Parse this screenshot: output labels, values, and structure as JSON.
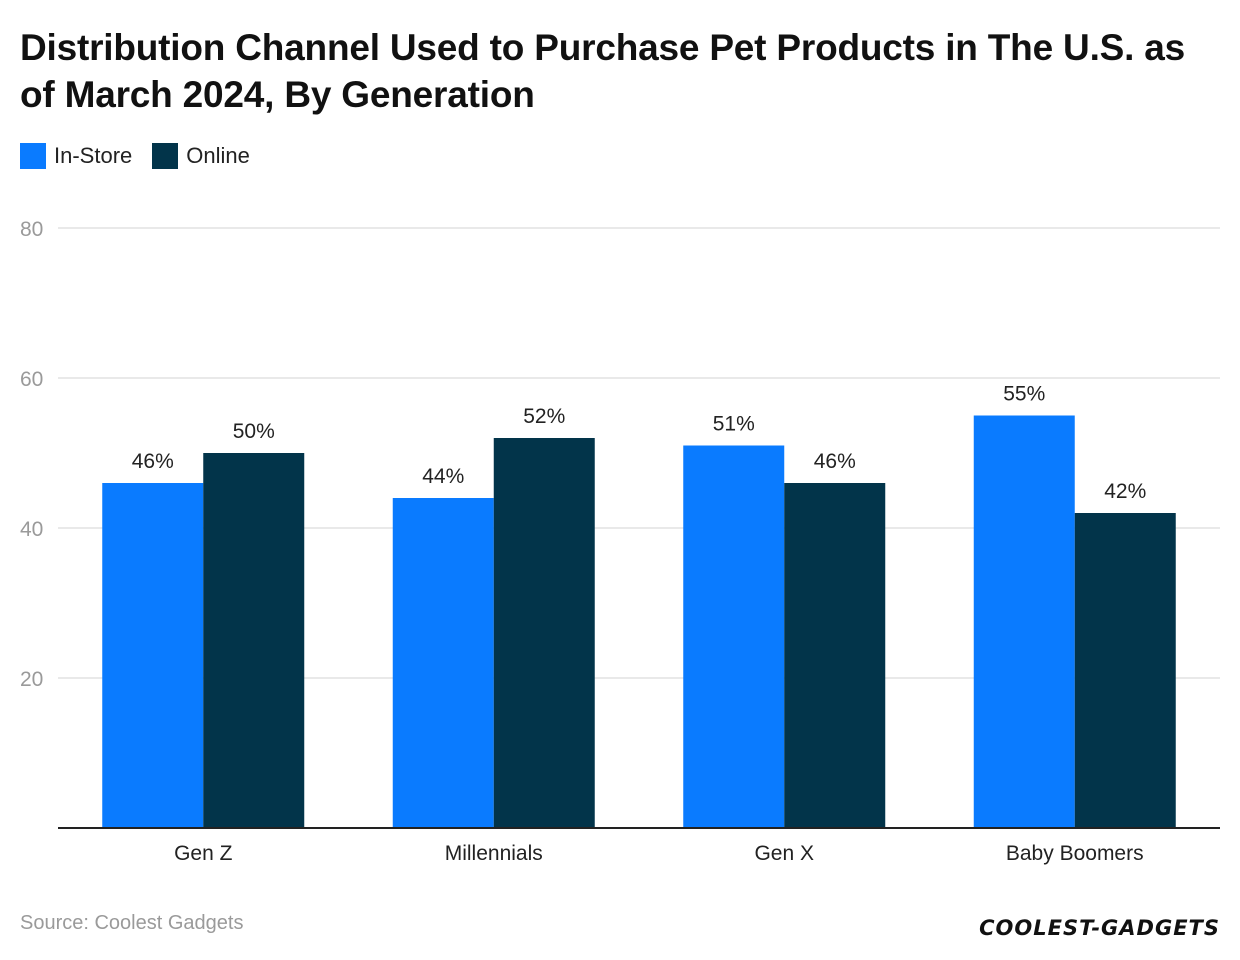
{
  "title": "Distribution Channel Used to Purchase Pet Products in The U.S. as of March 2024, By Generation",
  "legend": [
    {
      "label": "In-Store",
      "color": "#0a7bff"
    },
    {
      "label": "Online",
      "color": "#02344a"
    }
  ],
  "source": "Source: Coolest Gadgets",
  "logo": "COOLEST-GADGETS",
  "chart_data": {
    "type": "bar",
    "title": "Distribution Channel Used to Purchase Pet Products in The U.S. as of March 2024, By Generation",
    "categories": [
      "Gen Z",
      "Millennials",
      "Gen X",
      "Baby Boomers"
    ],
    "series": [
      {
        "name": "In-Store",
        "values": [
          46,
          44,
          51,
          55
        ],
        "color": "#0a7bff"
      },
      {
        "name": "Online",
        "values": [
          50,
          52,
          46,
          42
        ],
        "color": "#02344a"
      }
    ],
    "value_suffix": "%",
    "ylim": [
      0,
      80
    ],
    "yticks": [
      20,
      40,
      60,
      80
    ],
    "grid": true,
    "xlabel": "",
    "ylabel": "",
    "legend_position": "top-left"
  }
}
